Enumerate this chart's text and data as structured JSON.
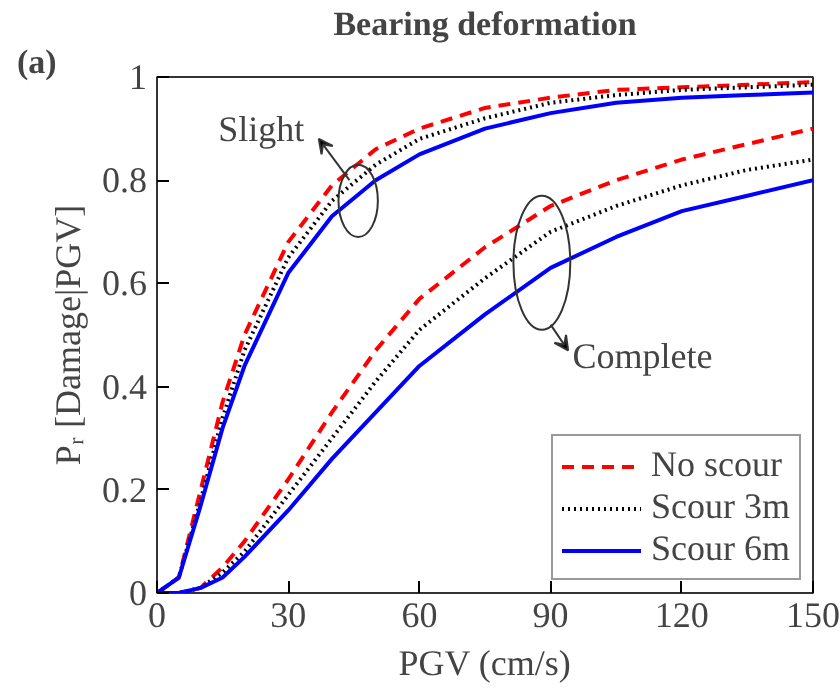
{
  "chart_data": {
    "type": "line",
    "title": "Bearing deformation",
    "xlabel": "PGV (cm/s)",
    "ylabel": "Pᵣ [Damage|PGV]",
    "x": [
      0,
      5,
      10,
      15,
      20,
      30,
      40,
      50,
      60,
      75,
      90,
      105,
      120,
      135,
      150
    ],
    "series": [
      {
        "name": "No scour",
        "color": "#ff0000",
        "line_style": "dashed",
        "values": [
          0,
          0.03,
          0.2,
          0.37,
          0.5,
          0.68,
          0.79,
          0.86,
          0.9,
          0.94,
          0.96,
          0.975,
          0.98,
          0.985,
          0.99
        ]
      },
      {
        "name": "Scour 3m",
        "color": "#000000",
        "line_style": "dotted",
        "values": [
          0,
          0.03,
          0.18,
          0.34,
          0.47,
          0.65,
          0.76,
          0.83,
          0.88,
          0.92,
          0.95,
          0.965,
          0.975,
          0.98,
          0.985
        ]
      },
      {
        "name": "Scour 6m",
        "color": "#0000ff",
        "line_style": "solid",
        "values": [
          0,
          0.03,
          0.17,
          0.32,
          0.44,
          0.62,
          0.73,
          0.8,
          0.85,
          0.9,
          0.93,
          0.95,
          0.96,
          0.965,
          0.97
        ]
      },
      {
        "color": "#ff0000",
        "line_style": "dashed",
        "values": [
          0,
          0,
          0.01,
          0.05,
          0.1,
          0.22,
          0.35,
          0.47,
          0.57,
          0.67,
          0.75,
          0.8,
          0.84,
          0.87,
          0.9
        ]
      },
      {
        "color": "#000000",
        "line_style": "dotted",
        "values": [
          0,
          0,
          0.01,
          0.04,
          0.08,
          0.19,
          0.3,
          0.41,
          0.51,
          0.61,
          0.7,
          0.75,
          0.79,
          0.82,
          0.84
        ]
      },
      {
        "color": "#0000ff",
        "line_style": "solid",
        "values": [
          0,
          0,
          0.01,
          0.03,
          0.07,
          0.16,
          0.26,
          0.35,
          0.44,
          0.54,
          0.63,
          0.69,
          0.74,
          0.77,
          0.8
        ]
      }
    ],
    "xlim": [
      0,
      150
    ],
    "ylim": [
      0,
      1
    ],
    "xticks": [
      0,
      30,
      60,
      90,
      120,
      150
    ],
    "yticks": [
      0,
      0.2,
      0.4,
      0.6,
      0.8,
      1
    ],
    "annotations": [
      "(a)",
      "Slight",
      "Complete"
    ],
    "grid": false,
    "legend": "bottom right",
    "marker": "none"
  }
}
